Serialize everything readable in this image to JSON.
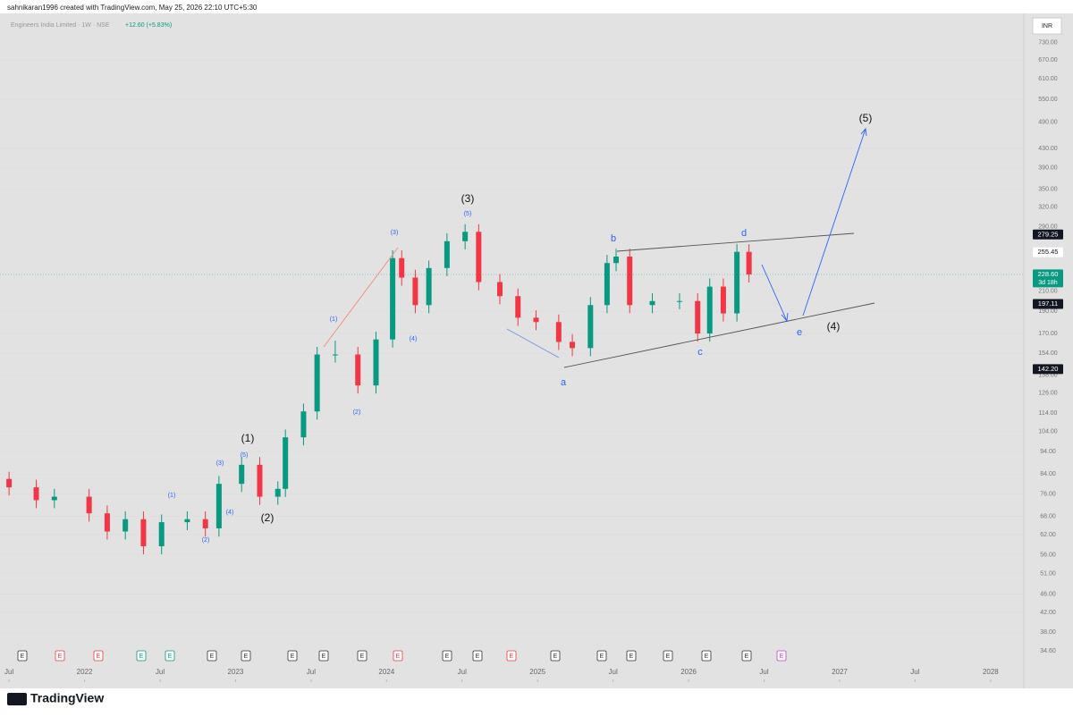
{
  "header": {
    "attribution": "sahnikaran1996 created with TradingView.com, May 25, 2026 22:10 UTC+5:30",
    "symbol": "Engineers India Limited · 1W · NSE",
    "change": "+12.60 (+5.83%)",
    "currency": "INR",
    "brand": "TradingView",
    "earnings_marker": "E"
  },
  "chart_data": {
    "type": "candlestick",
    "log_scale": true,
    "up_color": "#089981",
    "down_color": "#f23645",
    "x": [
      2021.5,
      2021.68,
      2021.8,
      2022.03,
      2022.15,
      2022.27,
      2022.39,
      2022.51,
      2022.68,
      2022.8,
      2022.89,
      2023.04,
      2023.16,
      2023.28,
      2023.33,
      2023.45,
      2023.54,
      2023.66,
      2023.81,
      2023.93,
      2024.04,
      2024.1,
      2024.19,
      2024.28,
      2024.4,
      2024.52,
      2024.61,
      2024.75,
      2024.87,
      2024.99,
      2025.14,
      2025.23,
      2025.35,
      2025.46,
      2025.52,
      2025.61,
      2025.76,
      2025.94,
      2026.06,
      2026.14,
      2026.23,
      2026.32,
      2026.4
    ],
    "open": [
      82,
      78.6,
      73.7,
      75,
      69,
      63,
      67,
      58.5,
      66,
      67,
      64,
      80,
      88,
      75,
      78,
      101,
      115,
      153,
      153,
      131,
      165,
      248,
      225,
      196,
      236,
      270,
      283,
      220,
      205,
      184,
      180,
      163,
      158,
      196,
      242,
      250,
      196,
      200,
      200,
      170,
      215,
      188,
      256
    ],
    "high": [
      85,
      81.7,
      78,
      78,
      71.8,
      69.7,
      69.7,
      68.6,
      69.7,
      69.7,
      83.2,
      91.5,
      91.5,
      81,
      105,
      119.6,
      159,
      164,
      159,
      171.6,
      258,
      258,
      234,
      245,
      281,
      294,
      294,
      229,
      213,
      191,
      187,
      169.5,
      204,
      252,
      260,
      260,
      208,
      208,
      208,
      224,
      224,
      266,
      266
    ],
    "low": [
      75.5,
      70.8,
      70.8,
      66.2,
      60.5,
      60.5,
      56.2,
      56.2,
      63.4,
      61.4,
      61.4,
      76.8,
      72,
      72,
      74.9,
      97,
      110.4,
      146.9,
      125.8,
      125.8,
      158.4,
      216,
      188.2,
      188.2,
      226.6,
      259.2,
      211.2,
      196.8,
      176.6,
      172.8,
      156.5,
      151.7,
      151.7,
      188.2,
      232.3,
      188.2,
      188.2,
      192,
      163.2,
      163.2,
      180.5,
      180.5,
      219.5
    ],
    "close": [
      78.6,
      73.7,
      75,
      69,
      63,
      67,
      58.5,
      66,
      67,
      64,
      80,
      88,
      75,
      78,
      101,
      115,
      153,
      153,
      131,
      165,
      248,
      225,
      196,
      236,
      270,
      283,
      220,
      205,
      184,
      180,
      163,
      158,
      196,
      242,
      250,
      196,
      200,
      200,
      170,
      215,
      188,
      256,
      228.6
    ],
    "xlim": [
      2021.44,
      2028.22
    ],
    "xticks": [
      {
        "value": 2021.5,
        "label": "Jul"
      },
      2022,
      {
        "value": 2022.5,
        "label": "Jul"
      },
      2023,
      {
        "value": 2023.5,
        "label": "Jul"
      },
      2024,
      {
        "value": 2024.5,
        "label": "Jul"
      },
      2025,
      {
        "value": 2025.5,
        "label": "Jul"
      },
      2026,
      {
        "value": 2026.5,
        "label": "Jul"
      },
      2027,
      {
        "value": 2027.5,
        "label": "Jul"
      },
      2028
    ],
    "ylim": [
      30,
      846
    ],
    "yticks": [
      {
        "value": 730,
        "label": "730.00"
      },
      {
        "value": 670,
        "label": "670.00"
      },
      {
        "value": 610,
        "label": "610.00"
      },
      {
        "value": 550,
        "label": "550.00"
      },
      {
        "value": 490,
        "label": "490.00"
      },
      {
        "value": 430,
        "label": "430.00"
      },
      {
        "value": 390,
        "label": "390.00"
      },
      {
        "value": 350,
        "label": "350.00"
      },
      {
        "value": 320,
        "label": "320.00"
      },
      {
        "value": 290,
        "label": "290.00"
      },
      {
        "value": 210,
        "label": "210.00"
      },
      {
        "value": 190,
        "label": "190.00"
      },
      {
        "value": 170,
        "label": "170.00"
      },
      {
        "value": 154,
        "label": "154.00"
      },
      {
        "value": 138,
        "label": "138.00"
      },
      {
        "value": 126,
        "label": "126.00"
      },
      {
        "value": 114,
        "label": "114.00"
      },
      {
        "value": 104,
        "label": "104.00"
      },
      {
        "value": 94,
        "label": "94.00"
      },
      {
        "value": 84,
        "label": "84.00"
      },
      {
        "value": 76,
        "label": "76.00"
      },
      {
        "value": 68,
        "label": "68.00"
      },
      {
        "value": 62,
        "label": "62.00"
      },
      {
        "value": 56,
        "label": "56.00"
      },
      {
        "value": 51,
        "label": "51.00"
      },
      {
        "value": 46,
        "label": "46.00"
      },
      {
        "value": 42,
        "label": "42.00"
      },
      {
        "value": 38,
        "label": "38.00"
      },
      {
        "value": 34.6,
        "label": "34.60"
      }
    ],
    "price_labels": [
      {
        "value": 279.25,
        "label": "279.25"
      },
      {
        "value": 255.45,
        "label": "255.45"
      },
      {
        "value": 228.6,
        "label": "228.60"
      },
      {
        "value": 197.11,
        "label": "197.11"
      },
      {
        "value": 142.2,
        "label": "142.20"
      }
    ],
    "countdown": "3d 18h",
    "annotations": [
      "(1)",
      "(2)",
      "(3)",
      "(4)",
      "(5)",
      "(1)",
      "(2)",
      "(3)",
      "(4)",
      "(5)",
      "(1)",
      "(2)",
      "(3)",
      "(4)",
      "(5)",
      "a",
      "b",
      "c",
      "d",
      "e"
    ]
  }
}
